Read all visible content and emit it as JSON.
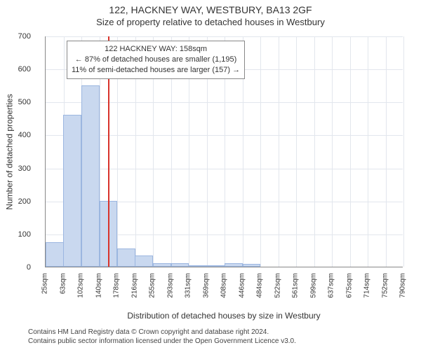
{
  "title": "122, HACKNEY WAY, WESTBURY, BA13 2GF",
  "subtitle": "Size of property relative to detached houses in Westbury",
  "chart": {
    "type": "histogram",
    "ylabel": "Number of detached properties",
    "xlabel": "Distribution of detached houses by size in Westbury",
    "ylim": [
      0,
      700
    ],
    "ytick_step": 100,
    "xticks_labels": [
      "25sqm",
      "63sqm",
      "102sqm",
      "140sqm",
      "178sqm",
      "216sqm",
      "255sqm",
      "293sqm",
      "331sqm",
      "369sqm",
      "408sqm",
      "446sqm",
      "484sqm",
      "522sqm",
      "561sqm",
      "599sqm",
      "637sqm",
      "675sqm",
      "714sqm",
      "752sqm",
      "790sqm"
    ],
    "x_min": 25,
    "x_max": 790,
    "xtick_step": 38.25,
    "bar_color": "#c9d8ef",
    "bar_border": "#9bb6e0",
    "grid_color": "#e2e6ed",
    "background_color": "#ffffff",
    "marker_color": "#d8332b",
    "marker_x": 158,
    "bars": [
      {
        "x": 25,
        "count": 75
      },
      {
        "x": 63,
        "count": 460
      },
      {
        "x": 102,
        "count": 550
      },
      {
        "x": 140,
        "count": 200
      },
      {
        "x": 178,
        "count": 55
      },
      {
        "x": 216,
        "count": 35
      },
      {
        "x": 255,
        "count": 10
      },
      {
        "x": 293,
        "count": 10
      },
      {
        "x": 331,
        "count": 5
      },
      {
        "x": 369,
        "count": 5
      },
      {
        "x": 408,
        "count": 10
      },
      {
        "x": 446,
        "count": 8
      }
    ],
    "bar_width_sqm": 38.25
  },
  "annotation": {
    "line1": "122 HACKNEY WAY: 158sqm",
    "line2": "← 87% of detached houses are smaller (1,195)",
    "line3": "11% of semi-detached houses are larger (157) →",
    "border_color": "#888888",
    "font_size": 11
  },
  "footer": {
    "line1": "Contains HM Land Registry data © Crown copyright and database right 2024.",
    "line2": "Contains public sector information licensed under the Open Government Licence v3.0."
  }
}
